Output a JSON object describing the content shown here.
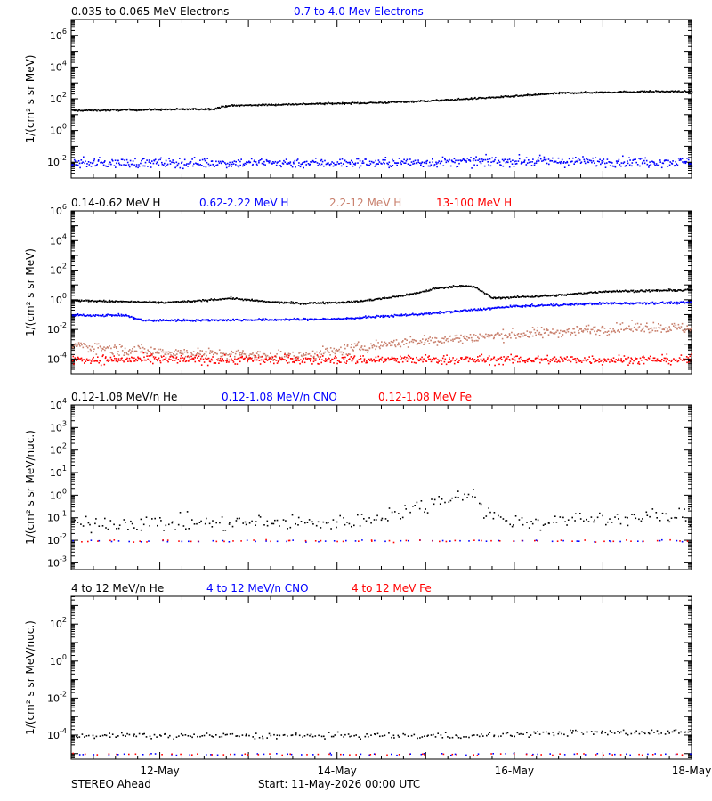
{
  "footer": {
    "spacecraft": "STEREO Ahead",
    "start": "Start: 11-May-2026 00:00 UTC"
  },
  "x_axis": {
    "range": [
      "11-May",
      "18-May"
    ],
    "tick_labels": [
      "12-May",
      "14-May",
      "16-May",
      "18-May"
    ]
  },
  "colors": {
    "black": "#000000",
    "blue": "#0000ff",
    "tan": "#c87f6c",
    "red": "#ff0000"
  },
  "chart_data": [
    {
      "type": "scatter",
      "ylabel": "1/(cm² s sr MeV)",
      "yscale": "log",
      "ylim_exp": [
        -3,
        7
      ],
      "ytick_exps": [
        -2,
        0,
        2,
        4,
        6
      ],
      "legend": [
        "0.035 to 0.065 MeV Electrons",
        "0.7 to 4.0 Mev Electrons"
      ],
      "series": [
        {
          "name": "0.035 to 0.065 MeV Electrons",
          "color": "#000000",
          "noise": 0.05,
          "x": [
            0,
            0.8,
            1.6,
            1.75,
            2.5,
            3.5,
            4.2,
            4.5,
            5.0,
            5.5,
            6.0,
            6.5,
            7.0
          ],
          "log_y": [
            1.3,
            1.35,
            1.4,
            1.6,
            1.7,
            1.8,
            1.95,
            2.05,
            2.2,
            2.4,
            2.45,
            2.5,
            2.5
          ]
        },
        {
          "name": "0.7 to 4.0 Mev Electrons",
          "color": "#0000ff",
          "noise": 0.3,
          "x": [
            0,
            3.5,
            5.0,
            7.0
          ],
          "log_y": [
            -2.0,
            -2.0,
            -1.9,
            -1.95
          ]
        }
      ]
    },
    {
      "type": "scatter",
      "ylabel": "1/(cm² s sr MeV)",
      "yscale": "log",
      "ylim_exp": [
        -5,
        6
      ],
      "ytick_exps": [
        -4,
        -2,
        0,
        2,
        4,
        6
      ],
      "legend": [
        "0.14-0.62 MeV H",
        "0.62-2.22 MeV H",
        "2.2-12 MeV H",
        "13-100 MeV H"
      ],
      "series": [
        {
          "name": "0.14-0.62 MeV H",
          "color": "#000000",
          "noise": 0.06,
          "x": [
            0,
            0.7,
            1.0,
            1.4,
            1.8,
            2.2,
            2.6,
            3.2,
            3.6,
            3.9,
            4.1,
            4.4,
            4.55,
            4.75,
            5.5,
            6.0,
            7.0
          ],
          "log_y": [
            0.0,
            -0.1,
            -0.15,
            -0.05,
            0.15,
            -0.1,
            -0.2,
            -0.1,
            0.2,
            0.5,
            0.8,
            1.0,
            0.9,
            0.15,
            0.35,
            0.6,
            0.7
          ]
        },
        {
          "name": "0.62-2.22 MeV H",
          "color": "#0000ff",
          "noise": 0.07,
          "x": [
            0,
            0.6,
            0.8,
            2.3,
            3.0,
            4.0,
            5.0,
            6.0,
            7.0
          ],
          "log_y": [
            -1.0,
            -1.0,
            -1.35,
            -1.3,
            -1.25,
            -0.9,
            -0.4,
            -0.2,
            -0.15
          ]
        },
        {
          "name": "2.2-12 MeV H",
          "color": "#c87f6c",
          "noise": 0.35,
          "x": [
            0,
            0.5,
            1.5,
            2.5,
            3.0,
            3.6,
            4.5,
            5.5,
            6.5,
            7.0
          ],
          "log_y": [
            -3.0,
            -3.3,
            -3.6,
            -3.8,
            -3.4,
            -2.9,
            -2.5,
            -2.1,
            -1.8,
            -1.9
          ]
        },
        {
          "name": "13-100 MeV H",
          "color": "#ff0000",
          "noise": 0.3,
          "x": [
            0,
            7.0
          ],
          "log_y": [
            -4.0,
            -4.0
          ]
        }
      ]
    },
    {
      "type": "scatter",
      "ylabel": "1/(cm² s sr MeV/nuc.)",
      "yscale": "log",
      "ylim_exp": [
        -3.3,
        4
      ],
      "ytick_exps": [
        -3,
        -2,
        -1,
        0,
        1,
        2,
        3,
        4
      ],
      "legend": [
        "0.12-1.08 MeV/n He",
        "0.12-1.08 MeV/n CNO",
        "0.12-1.08 MeV Fe"
      ],
      "series": [
        {
          "name": "0.12-1.08 MeV/n He",
          "color": "#000000",
          "noise": 0.35,
          "x": [
            0,
            3.0,
            3.4,
            3.8,
            4.1,
            4.3,
            4.5,
            4.7,
            5.0,
            6.0,
            7.0
          ],
          "log_y": [
            -1.2,
            -1.2,
            -1.0,
            -0.6,
            -0.3,
            0.0,
            0.2,
            -0.8,
            -1.2,
            -1.0,
            -0.9
          ]
        },
        {
          "name": "0.12-1.08 MeV/n CNO",
          "color": "#0000ff",
          "noise": 0.05,
          "x": [
            0,
            7.0
          ],
          "log_y": [
            -2.0,
            -2.0
          ]
        },
        {
          "name": "0.12-1.08 MeV Fe",
          "color": "#ff0000",
          "noise": 0.05,
          "x": [
            0,
            7.0
          ],
          "log_y": [
            -2.0,
            -2.0
          ]
        }
      ]
    },
    {
      "type": "scatter",
      "ylabel": "1/(cm² s sr MeV/nuc.)",
      "yscale": "log",
      "ylim_exp": [
        -5.3,
        3.5
      ],
      "ytick_exps": [
        -4,
        -2,
        0,
        2
      ],
      "legend": [
        "4 to 12 MeV/n He",
        "4 to 12 MeV/n CNO",
        "4 to 12 MeV Fe"
      ],
      "series": [
        {
          "name": "4 to 12 MeV/n He",
          "color": "#000000",
          "noise": 0.15,
          "x": [
            0,
            4.5,
            5.5,
            7.0
          ],
          "log_y": [
            -4.0,
            -4.0,
            -3.85,
            -3.8
          ]
        },
        {
          "name": "4 to 12 MeV/n CNO",
          "color": "#0000ff",
          "noise": 0.05,
          "x": [
            0,
            7.0
          ],
          "log_y": [
            -5.0,
            -5.0
          ]
        },
        {
          "name": "4 to 12 MeV Fe",
          "color": "#ff0000",
          "noise": 0.05,
          "x": [
            0,
            7.0
          ],
          "log_y": [
            -5.0,
            -5.0
          ]
        }
      ]
    }
  ]
}
